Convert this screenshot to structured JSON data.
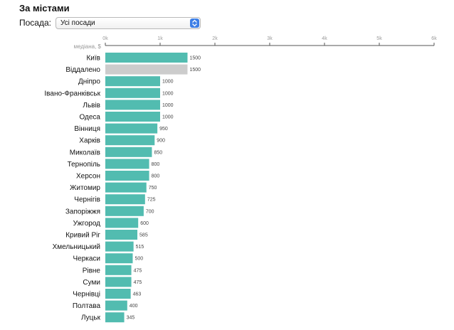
{
  "header": {
    "title": "За містами",
    "filter_label": "Посада:",
    "filter_value": "Усі посади"
  },
  "colors": {
    "bar": "#52bcb0",
    "bar_highlight": "#cccccc",
    "axis": "#555555"
  },
  "chart_data": {
    "type": "bar",
    "orientation": "horizontal",
    "title": "",
    "xlabel": "медіана, $",
    "ylabel": "",
    "xlim": [
      0,
      6000
    ],
    "xticks": [
      0,
      1000,
      2000,
      3000,
      4000,
      5000,
      6000
    ],
    "xtick_labels": [
      "0k",
      "1k",
      "2k",
      "3k",
      "4k",
      "5k",
      "6k"
    ],
    "grid": false,
    "categories": [
      "Київ",
      "Віддалено",
      "Дніпро",
      "Івано-Франківськ",
      "Львів",
      "Одеса",
      "Вінниця",
      "Харків",
      "Миколаїв",
      "Тернопіль",
      "Херсон",
      "Житомир",
      "Чернігів",
      "Запоріжжя",
      "Ужгород",
      "Кривий Ріг",
      "Хмельницький",
      "Черкаси",
      "Рівне",
      "Суми",
      "Чернівці",
      "Полтава",
      "Луцьк"
    ],
    "values": [
      1500,
      1500,
      1000,
      1000,
      1000,
      1000,
      950,
      900,
      850,
      800,
      800,
      750,
      725,
      700,
      600,
      585,
      515,
      500,
      475,
      475,
      463,
      400,
      345
    ],
    "value_labels": [
      "1500",
      "1500",
      "1000",
      "1000",
      "1000",
      "1000",
      "950",
      "900",
      "850",
      "800",
      "800",
      "750",
      "725",
      "700",
      "600",
      "585",
      "515",
      "500",
      "475",
      "475",
      "463",
      "400",
      "345"
    ],
    "highlighted": [
      "Віддалено"
    ]
  }
}
